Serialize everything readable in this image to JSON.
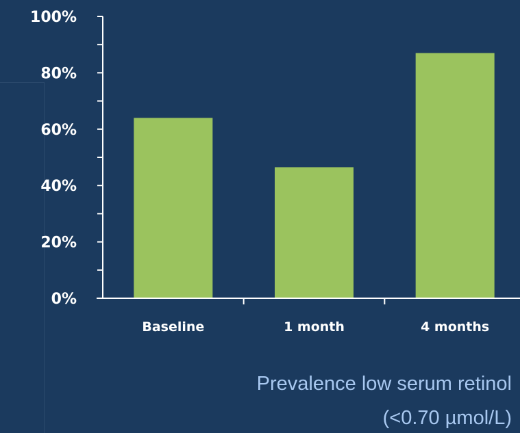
{
  "chart_data": {
    "type": "bar",
    "categories": [
      "Baseline",
      "1 month",
      "4 months"
    ],
    "values": [
      64,
      46.5,
      87
    ],
    "y_ticks": [
      "0%",
      "20%",
      "40%",
      "60%",
      "80%",
      "100%"
    ],
    "ylim": [
      0,
      100
    ],
    "grid": false,
    "bar_color": "#9bc35e",
    "axis_color": "#ffffff"
  },
  "caption": {
    "line1": "Prevalence low serum retinol",
    "line2": "(<0.70 µmol/L)"
  },
  "colors": {
    "background": "#1b3a5e",
    "caption": "#a8c8f0"
  }
}
